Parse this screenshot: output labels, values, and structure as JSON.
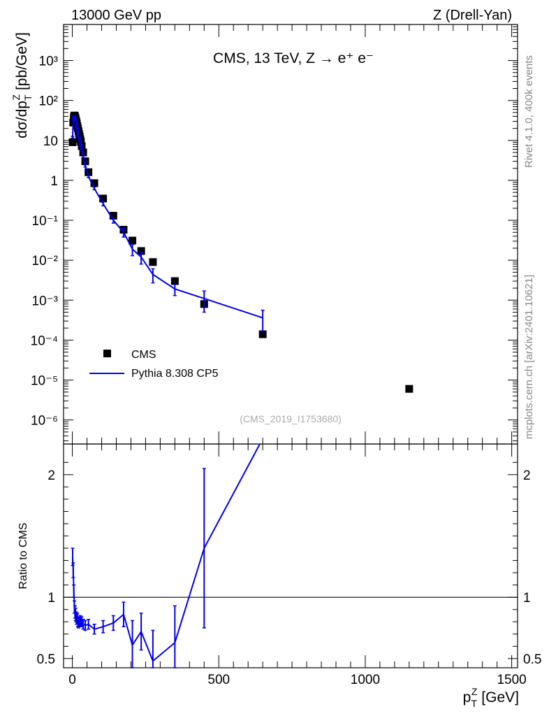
{
  "header": {
    "left": "13000 GeV pp",
    "right": "Z (Drell-Yan)"
  },
  "side_labels": {
    "rivet": "Rivet 4.1.0,  400k events",
    "mcplots": "mcplots.cern.ch [arXiv:2401.10621]"
  },
  "chart_data": [
    {
      "type": "scatter",
      "panel": "main",
      "title": "CMS, 13 TeV, Z →  e⁺ e⁻",
      "analysis_label": "(CMS_2019_I1753680)",
      "xlabel": "",
      "ylabel": "dσ/dp_T^Z [pb/GeV]",
      "yscale": "log",
      "xlim": [
        -30,
        1520
      ],
      "ylim": [
        2.5e-07,
        8000
      ],
      "x_ticks": [
        0,
        500,
        1000,
        1500
      ],
      "y_ticks": [
        {
          "value": 1e-06,
          "label": "10⁻⁶"
        },
        {
          "value": 1e-05,
          "label": "10⁻⁵"
        },
        {
          "value": 0.0001,
          "label": "10⁻⁴"
        },
        {
          "value": 0.001,
          "label": "10⁻³"
        },
        {
          "value": 0.01,
          "label": "10⁻²"
        },
        {
          "value": 0.1,
          "label": "10⁻¹"
        },
        {
          "value": 1,
          "label": "1"
        },
        {
          "value": 10,
          "label": "10"
        },
        {
          "value": 100,
          "label": "10²"
        },
        {
          "value": 1000,
          "label": "10³"
        }
      ],
      "legend": {
        "position": "lower-left",
        "entries": [
          "CMS",
          "Pythia 8.308 CP5"
        ]
      },
      "series": [
        {
          "name": "CMS",
          "style": "markers",
          "color": "#000000",
          "x": [
            1,
            3,
            5,
            7,
            9,
            11,
            13,
            15,
            17,
            19,
            21,
            23,
            25,
            27,
            29,
            32,
            37,
            44,
            55,
            75,
            105,
            140,
            175,
            205,
            235,
            275,
            350,
            450,
            650,
            1150
          ],
          "y": [
            9,
            28,
            38,
            42,
            40,
            36,
            31,
            27,
            23,
            20,
            17,
            14.5,
            12.5,
            10.8,
            9.3,
            7.2,
            5.0,
            3.0,
            1.6,
            0.85,
            0.35,
            0.13,
            0.058,
            0.031,
            0.017,
            0.009,
            0.003,
            0.0008,
            0.00014,
            6e-06
          ]
        },
        {
          "name": "Pythia 8.308 CP5",
          "style": "line",
          "color": "#0000ee",
          "x": [
            1,
            3,
            5,
            7,
            9,
            11,
            13,
            15,
            17,
            19,
            21,
            23,
            25,
            27,
            29,
            32,
            37,
            44,
            55,
            75,
            105,
            140,
            175,
            205,
            235,
            275,
            350,
            450,
            650
          ],
          "y": [
            12,
            34,
            40,
            38,
            35,
            31,
            26,
            22,
            19,
            16,
            13.5,
            11.5,
            10,
            8.7,
            7.4,
            5.8,
            3.9,
            2.3,
            1.25,
            0.63,
            0.26,
            0.1,
            0.05,
            0.019,
            0.012,
            0.0044,
            0.0019,
            0.0011,
            0.00036
          ],
          "err": [
            0.6,
            1.2,
            1.3,
            1.3,
            1.2,
            1.1,
            1.0,
            0.9,
            0.8,
            0.7,
            0.6,
            0.5,
            0.5,
            0.4,
            0.4,
            0.3,
            0.2,
            0.15,
            0.08,
            0.05,
            0.03,
            0.015,
            0.012,
            0.006,
            0.004,
            0.0017,
            0.0006,
            0.0006,
            0.0002
          ]
        }
      ]
    },
    {
      "type": "line",
      "panel": "ratio",
      "xlabel": "p_T^Z [GeV]",
      "ylabel": "Ratio to CMS",
      "xlim": [
        -30,
        1520
      ],
      "ylim": [
        0.425,
        2.25
      ],
      "reference_line": 1,
      "x_ticks": [
        0,
        500,
        1000,
        1500
      ],
      "y_ticks": [
        0.5,
        1,
        2
      ],
      "series": [
        {
          "name": "Pythia 8.308 CP5 / CMS",
          "color": "#0000ee",
          "x": [
            1,
            3,
            5,
            7,
            9,
            11,
            13,
            15,
            17,
            19,
            21,
            23,
            25,
            27,
            29,
            32,
            37,
            44,
            55,
            75,
            105,
            140,
            175,
            205,
            235,
            275,
            350,
            450,
            640
          ],
          "y": [
            1.33,
            1.22,
            1.05,
            0.92,
            0.88,
            0.86,
            0.84,
            0.82,
            0.83,
            0.8,
            0.79,
            0.8,
            0.8,
            0.81,
            0.8,
            0.8,
            0.78,
            0.77,
            0.78,
            0.74,
            0.76,
            0.79,
            0.86,
            0.61,
            0.72,
            0.48,
            0.63,
            1.4,
            2.25
          ],
          "err": [
            0.07,
            0.06,
            0.05,
            0.05,
            0.05,
            0.05,
            0.04,
            0.04,
            0.04,
            0.04,
            0.04,
            0.04,
            0.04,
            0.04,
            0.04,
            0.04,
            0.04,
            0.04,
            0.04,
            0.04,
            0.05,
            0.06,
            0.1,
            0.2,
            0.15,
            0.25,
            0.3,
            0.65,
            0
          ]
        }
      ]
    }
  ]
}
